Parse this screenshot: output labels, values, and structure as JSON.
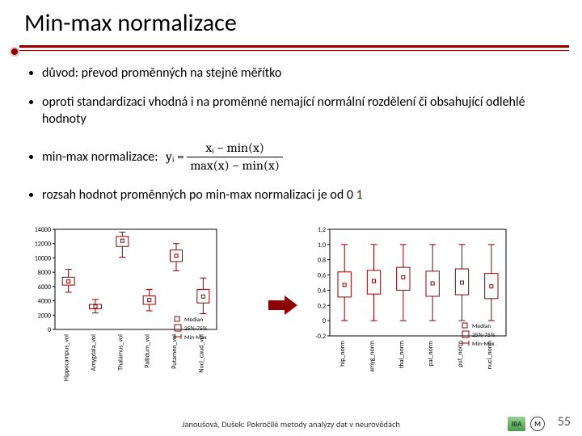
{
  "title": "Min-max normalizace",
  "bullets": {
    "b1": "důvod: převod proměnných na stejné měřítko",
    "b2": "oproti standardizaci vhodná i na proměnné nemající normální rozdělení či obsahující odlehlé hodnoty",
    "b3_pre": "min-max normalizace: ",
    "formula": {
      "lhs": "yᵢ =",
      "num": "xᵢ − min(x)",
      "den": "max(x) − min(x)"
    },
    "b4_pre": "rozsah hodnot proměnných po min-max normalizaci je od 0 ",
    "b4_red": "1"
  },
  "chart_left": {
    "type": "boxplot",
    "ylim": [
      0,
      14000
    ],
    "ytick_step": 2000,
    "yticks": [
      0,
      2000,
      4000,
      6000,
      8000,
      10000,
      12000,
      14000
    ],
    "categories": [
      "Hippocampus_vol",
      "Amygdala_vol",
      "Thalamus_vol",
      "Pallidum_vol",
      "Putamen_vol",
      "Nucl_caud_vol"
    ],
    "boxes": [
      {
        "min": 5200,
        "q1": 6200,
        "median": 6700,
        "q3": 7300,
        "max": 8400
      },
      {
        "min": 2300,
        "q1": 2900,
        "median": 3200,
        "q3": 3500,
        "max": 4200
      },
      {
        "min": 10100,
        "q1": 11600,
        "median": 12400,
        "q3": 13000,
        "max": 13600
      },
      {
        "min": 2600,
        "q1": 3500,
        "median": 4100,
        "q3": 4700,
        "max": 5600
      },
      {
        "min": 8200,
        "q1": 9500,
        "median": 10300,
        "q3": 11100,
        "max": 12000
      },
      {
        "min": 2200,
        "q1": 3700,
        "median": 4600,
        "q3": 5600,
        "max": 7200
      }
    ],
    "legend": [
      "Median",
      "25%-75%",
      "Min-Max"
    ],
    "colors": {
      "box_border": "#8b0000",
      "whisker": "#8b0000",
      "median": "#8b0000",
      "axis": "#000000",
      "tick_label": "#000000",
      "label_fontsize": 8
    }
  },
  "chart_right": {
    "type": "boxplot",
    "ylim": [
      -0.2,
      1.2
    ],
    "yticks": [
      -0.2,
      0,
      0.2,
      0.4,
      0.6,
      0.8,
      1.0,
      1.2
    ],
    "yticklabels": [
      "-0,2",
      "0",
      "0,2",
      "0,4",
      "0,6",
      "0,8",
      "1,0",
      "1,2"
    ],
    "categories": [
      "hip_norm",
      "amyg_norm",
      "thal_norm",
      "pal_norm",
      "put_norm",
      "nucl_norm"
    ],
    "boxes": [
      {
        "min": 0,
        "q1": 0.31,
        "median": 0.47,
        "q3": 0.64,
        "max": 1.0
      },
      {
        "min": 0,
        "q1": 0.35,
        "median": 0.52,
        "q3": 0.66,
        "max": 1.0
      },
      {
        "min": 0,
        "q1": 0.4,
        "median": 0.57,
        "q3": 0.7,
        "max": 1.0
      },
      {
        "min": 0,
        "q1": 0.32,
        "median": 0.49,
        "q3": 0.65,
        "max": 1.0
      },
      {
        "min": 0,
        "q1": 0.34,
        "median": 0.5,
        "q3": 0.68,
        "max": 1.0
      },
      {
        "min": 0,
        "q1": 0.29,
        "median": 0.45,
        "q3": 0.62,
        "max": 1.0
      }
    ],
    "legend": [
      "Median",
      "25%-75%",
      "Min-Max"
    ],
    "colors": {
      "box_border": "#8b0000",
      "whisker": "#8b0000",
      "median": "#8b0000",
      "axis": "#000000",
      "tick_label": "#000000",
      "label_fontsize": 8
    }
  },
  "arrow_color": "#8b0000",
  "footer": "Janoušová, Dušek: Pokročilé metody analýzy dat v neurovědách",
  "logos": {
    "iba": "IBA",
    "mu": "M"
  },
  "slidenum": "55"
}
